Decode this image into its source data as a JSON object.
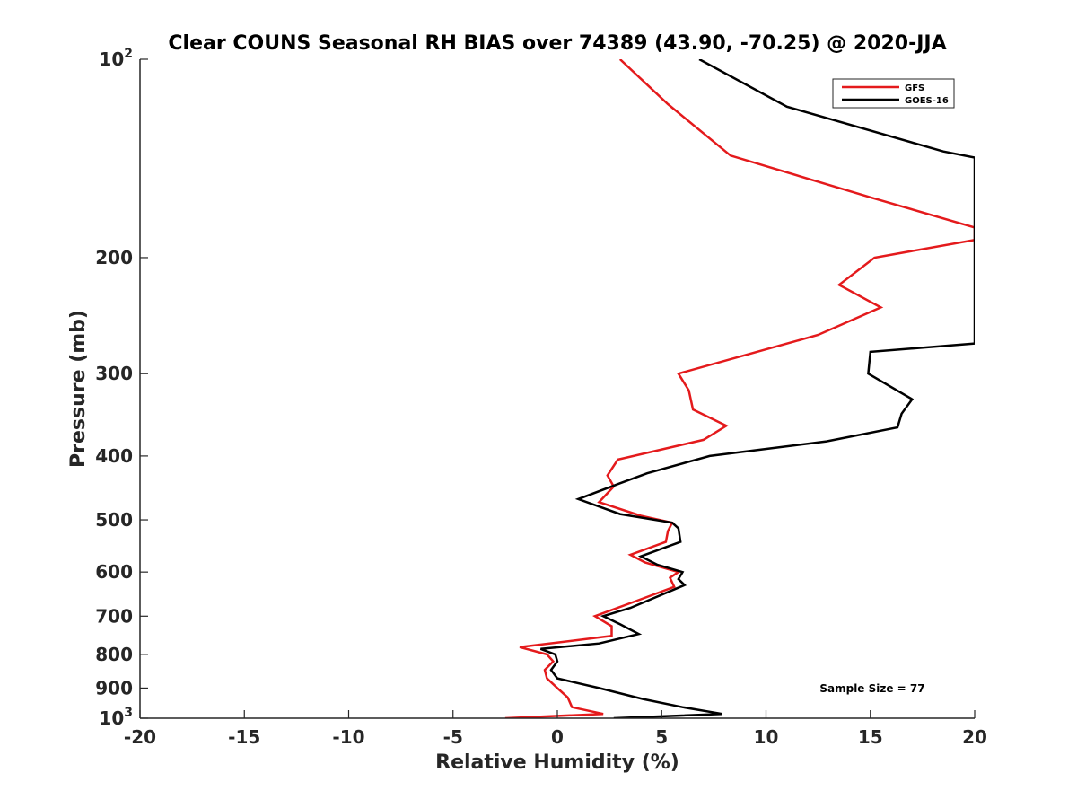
{
  "chart_data": {
    "type": "line",
    "title": "Clear COUNS Seasonal RH BIAS over 74389 (43.90, -70.25) @ 2020-JJA",
    "xlabel": "Relative Humidity (%)",
    "ylabel": "Pressure (mb)",
    "xlim": [
      -20,
      20
    ],
    "ylim": [
      100,
      1000
    ],
    "yscale": "log",
    "y_reversed": true,
    "xticks": [
      -20,
      -15,
      -10,
      -5,
      0,
      5,
      10,
      15,
      20
    ],
    "xtick_labels": [
      "-20",
      "-15",
      "-10",
      "-5",
      "0",
      "5",
      "10",
      "15",
      "20"
    ],
    "yticks": [
      100,
      200,
      300,
      400,
      500,
      600,
      700,
      800,
      900,
      1000
    ],
    "ytick_labels": [
      {
        "base": "10",
        "exp": "2"
      },
      {
        "base": "200"
      },
      {
        "base": "300"
      },
      {
        "base": "400"
      },
      {
        "base": "500"
      },
      {
        "base": "600"
      },
      {
        "base": "700"
      },
      {
        "base": "800"
      },
      {
        "base": "900"
      },
      {
        "base": "10",
        "exp": "3"
      }
    ],
    "legend": {
      "position": "top-right",
      "entries": [
        "GFS",
        "GOES-16"
      ]
    },
    "annotation": "Sample Size = 77",
    "grid": false,
    "series": [
      {
        "name": "GFS",
        "color": "#e41a1c",
        "points": [
          [
            3,
            100
          ],
          [
            5.3,
            117
          ],
          [
            8.3,
            140
          ],
          [
            15,
            162
          ],
          [
            20,
            180
          ],
          [
            20,
            188
          ],
          [
            15.2,
            200
          ],
          [
            13.5,
            220
          ],
          [
            15.5,
            238
          ],
          [
            12.5,
            262
          ],
          [
            5.8,
            300
          ],
          [
            6.3,
            318
          ],
          [
            6.5,
            340
          ],
          [
            8.1,
            360
          ],
          [
            7,
            378
          ],
          [
            2.9,
            405
          ],
          [
            2.4,
            428
          ],
          [
            2.7,
            445
          ],
          [
            2,
            470
          ],
          [
            4,
            493
          ],
          [
            5.5,
            505
          ],
          [
            5.3,
            520
          ],
          [
            5.2,
            540
          ],
          [
            3.5,
            565
          ],
          [
            4.2,
            580
          ],
          [
            5.8,
            600
          ],
          [
            5.4,
            612
          ],
          [
            5.6,
            632
          ],
          [
            4,
            660
          ],
          [
            1.8,
            700
          ],
          [
            2.6,
            725
          ],
          [
            2.6,
            750
          ],
          [
            -1.8,
            780
          ],
          [
            -0.5,
            800
          ],
          [
            -0.2,
            820
          ],
          [
            -0.6,
            845
          ],
          [
            -0.5,
            870
          ],
          [
            0,
            900
          ],
          [
            0.5,
            930
          ],
          [
            0.7,
            962
          ],
          [
            2.2,
            985
          ],
          [
            -2.5,
            1000
          ]
        ]
      },
      {
        "name": "GOES-16",
        "color": "#000000",
        "points": [
          [
            6.8,
            100
          ],
          [
            11,
            118
          ],
          [
            18.5,
            138
          ],
          [
            20,
            141
          ],
          [
            20,
            270
          ],
          [
            15,
            278
          ],
          [
            14.9,
            300
          ],
          [
            17,
            328
          ],
          [
            16.5,
            345
          ],
          [
            16.3,
            362
          ],
          [
            12.9,
            380
          ],
          [
            7.3,
            400
          ],
          [
            4.3,
            425
          ],
          [
            3,
            440
          ],
          [
            1,
            465
          ],
          [
            3,
            490
          ],
          [
            5.5,
            505
          ],
          [
            5.8,
            515
          ],
          [
            5.9,
            540
          ],
          [
            4,
            568
          ],
          [
            4.8,
            585
          ],
          [
            6,
            600
          ],
          [
            5.8,
            615
          ],
          [
            6.1,
            628
          ],
          [
            3.5,
            680
          ],
          [
            2.2,
            700
          ],
          [
            3,
            720
          ],
          [
            3.9,
            745
          ],
          [
            2,
            770
          ],
          [
            -0.8,
            785
          ],
          [
            -0.1,
            800
          ],
          [
            0,
            820
          ],
          [
            -0.3,
            845
          ],
          [
            0,
            870
          ],
          [
            2,
            900
          ],
          [
            4.1,
            935
          ],
          [
            6,
            962
          ],
          [
            7.9,
            985
          ],
          [
            2.7,
            1000
          ]
        ]
      }
    ]
  }
}
